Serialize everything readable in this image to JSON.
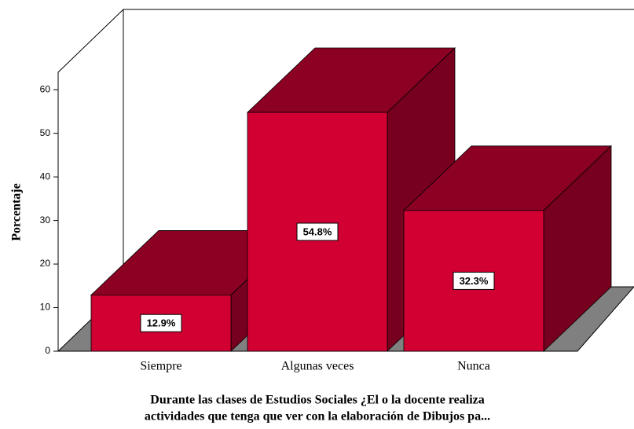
{
  "chart_data": {
    "type": "bar3d",
    "categories": [
      "Siempre",
      "Algunas veces",
      "Nunca"
    ],
    "values": [
      12.9,
      54.8,
      32.3
    ],
    "value_labels": [
      "12.9%",
      "54.8%",
      "32.3%"
    ],
    "ylabel": "Porcentaje",
    "xlabel": [
      "Durante las clases de Estudios Sociales ¿El o la docente realiza",
      "actividades que tenga  que ver con la elaboración de Dibujos pa..."
    ],
    "ylim": [
      0,
      64
    ],
    "yticks": [
      0,
      10,
      20,
      30,
      40,
      50,
      60
    ],
    "colors": {
      "front": "#d20032",
      "top": "#8c0024",
      "side": "#76001d",
      "floor": "#808080"
    },
    "grid": false
  }
}
